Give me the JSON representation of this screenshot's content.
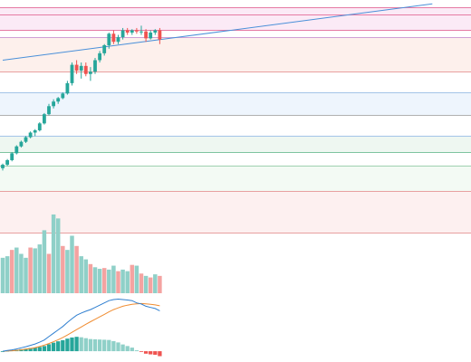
{
  "colors": {
    "up": "#26a69a",
    "down": "#ef5350",
    "volume_up": "#8fd0c8",
    "volume_down": "#f4a3a1",
    "trendline": "#4a90d9",
    "macd_line": "#2f7fd0",
    "signal_line": "#f08c30",
    "grid": "#f0f3fa"
  },
  "chart_data": [
    {
      "type": "candlestick",
      "title": "",
      "xlabel": "",
      "ylabel": "",
      "ylim": [
        0,
        100
      ],
      "candles": [
        {
          "o": 28,
          "h": 30,
          "l": 27,
          "c": 29.5
        },
        {
          "o": 29.5,
          "h": 32,
          "l": 29,
          "c": 31.5
        },
        {
          "o": 31.5,
          "h": 35,
          "l": 31,
          "c": 34.5
        },
        {
          "o": 34.5,
          "h": 38,
          "l": 34,
          "c": 37.5
        },
        {
          "o": 37.5,
          "h": 40,
          "l": 37,
          "c": 39.5
        },
        {
          "o": 39.5,
          "h": 42,
          "l": 39,
          "c": 41.5
        },
        {
          "o": 41.5,
          "h": 44,
          "l": 41,
          "c": 43.5
        },
        {
          "o": 43.5,
          "h": 45,
          "l": 42,
          "c": 44.5
        },
        {
          "o": 44.5,
          "h": 48,
          "l": 44,
          "c": 47.5
        },
        {
          "o": 47.5,
          "h": 52,
          "l": 47,
          "c": 51.5
        },
        {
          "o": 51.5,
          "h": 56,
          "l": 51,
          "c": 55
        },
        {
          "o": 55,
          "h": 58,
          "l": 54,
          "c": 57
        },
        {
          "o": 57,
          "h": 59,
          "l": 56,
          "c": 58.5
        },
        {
          "o": 58.5,
          "h": 61,
          "l": 58,
          "c": 60.5
        },
        {
          "o": 60.5,
          "h": 66,
          "l": 60,
          "c": 65
        },
        {
          "o": 65,
          "h": 74,
          "l": 64,
          "c": 73
        },
        {
          "o": 73,
          "h": 75,
          "l": 69,
          "c": 70.5
        },
        {
          "o": 70.5,
          "h": 74,
          "l": 67,
          "c": 72.5
        },
        {
          "o": 72.5,
          "h": 74,
          "l": 68,
          "c": 69
        },
        {
          "o": 69,
          "h": 72,
          "l": 66,
          "c": 70
        },
        {
          "o": 70,
          "h": 76,
          "l": 69,
          "c": 75
        },
        {
          "o": 75,
          "h": 79,
          "l": 74,
          "c": 78
        },
        {
          "o": 78,
          "h": 82,
          "l": 77,
          "c": 81.5
        },
        {
          "o": 81.5,
          "h": 87,
          "l": 80,
          "c": 86.5
        },
        {
          "o": 86.5,
          "h": 88,
          "l": 82,
          "c": 83
        },
        {
          "o": 83,
          "h": 86,
          "l": 82,
          "c": 85
        },
        {
          "o": 85,
          "h": 89,
          "l": 84,
          "c": 88
        },
        {
          "o": 88,
          "h": 89,
          "l": 86,
          "c": 87
        },
        {
          "o": 87,
          "h": 88.5,
          "l": 86,
          "c": 88
        },
        {
          "o": 88,
          "h": 89,
          "l": 86.5,
          "c": 87.5
        },
        {
          "o": 87.5,
          "h": 90,
          "l": 86,
          "c": 87.5
        },
        {
          "o": 87.5,
          "h": 88.5,
          "l": 83,
          "c": 84.5
        },
        {
          "o": 84.5,
          "h": 88,
          "l": 84,
          "c": 87
        },
        {
          "o": 87,
          "h": 88.5,
          "l": 86,
          "c": 88
        },
        {
          "o": 88,
          "h": 89,
          "l": 82,
          "c": 84
        }
      ],
      "trendline": {
        "x0": 0,
        "y0": 75,
        "x1": 93,
        "y1": 99.5
      },
      "horizontal_lines": [
        {
          "y": 98,
          "color": "#e57aa3"
        },
        {
          "y": 95,
          "color": "#e57aa3"
        },
        {
          "y": 88,
          "color": "#e57aa3"
        },
        {
          "y": 85,
          "color": "#cfa0d6"
        },
        {
          "y": 70,
          "color": "#e8a0a0"
        },
        {
          "y": 61,
          "color": "#a3c4e8"
        },
        {
          "y": 51,
          "color": "#b0b0b0"
        },
        {
          "y": 42,
          "color": "#a3c4e8"
        },
        {
          "y": 35,
          "color": "#7ec4a0"
        },
        {
          "y": 29,
          "color": "#9ed1b0"
        },
        {
          "y": 18,
          "color": "#e8a0a0"
        },
        {
          "y": 0,
          "color": "#e8a0a0"
        }
      ],
      "bands": [
        {
          "from": 88,
          "to": 98,
          "color": "#fbeaf6"
        },
        {
          "from": 70,
          "to": 85,
          "color": "#fdf0ec"
        },
        {
          "from": 51,
          "to": 61,
          "color": "#eef5fd"
        },
        {
          "from": 35,
          "to": 42,
          "color": "#eef7f1"
        },
        {
          "from": 18,
          "to": 29,
          "color": "#f3faf4"
        },
        {
          "from": 0,
          "to": 18,
          "color": "#fdf0f0"
        }
      ]
    },
    {
      "type": "bar",
      "name": "volume",
      "ylim": [
        0,
        100
      ],
      "values": [
        45,
        47,
        55,
        58,
        50,
        45,
        58,
        57,
        62,
        80,
        50,
        100,
        95,
        60,
        55,
        73,
        60,
        47,
        43,
        37,
        33,
        31,
        32,
        30,
        35,
        28,
        30,
        28,
        36,
        35,
        25,
        22,
        20,
        24,
        22
      ],
      "up": [
        true,
        true,
        false,
        true,
        true,
        true,
        false,
        true,
        true,
        true,
        false,
        true,
        true,
        false,
        true,
        true,
        false,
        true,
        true,
        false,
        true,
        true,
        false,
        true,
        true,
        false,
        true,
        true,
        false,
        true,
        false,
        true,
        false,
        true,
        false
      ]
    },
    {
      "type": "macd",
      "ylim": [
        -4,
        25
      ],
      "macd": [
        0,
        0.3,
        0.6,
        1,
        1.5,
        2,
        2.6,
        3.2,
        4,
        5,
        6.5,
        8,
        9.5,
        11,
        12.8,
        14.5,
        16,
        17,
        17.8,
        18.5,
        19.5,
        20.5,
        21.5,
        22.5,
        23,
        23.2,
        23,
        22.8,
        22.5,
        21.5,
        21,
        20,
        19.5,
        19,
        18
      ],
      "signal": [
        0,
        0.1,
        0.2,
        0.4,
        0.6,
        0.9,
        1.2,
        1.6,
        2.1,
        2.7,
        3.4,
        4.2,
        5.1,
        6.1,
        7.2,
        8.4,
        9.6,
        10.8,
        12,
        13.1,
        14.2,
        15.3,
        16.4,
        17.5,
        18.5,
        19.3,
        20,
        20.5,
        20.9,
        21.1,
        21.2,
        21.1,
        20.9,
        20.6,
        20.2
      ],
      "histogram": [
        0,
        0.2,
        0.4,
        0.6,
        0.9,
        1.1,
        1.4,
        1.6,
        1.9,
        2.3,
        3.1,
        3.8,
        4.4,
        4.9,
        5.6,
        6.1,
        6.4,
        6.2,
        5.8,
        5.4,
        5.3,
        5.2,
        5.1,
        5,
        4.5,
        3.9,
        3,
        2.3,
        1.6,
        0.4,
        -0.2,
        -1.1,
        -1.4,
        -1.6,
        -2.2
      ]
    }
  ]
}
